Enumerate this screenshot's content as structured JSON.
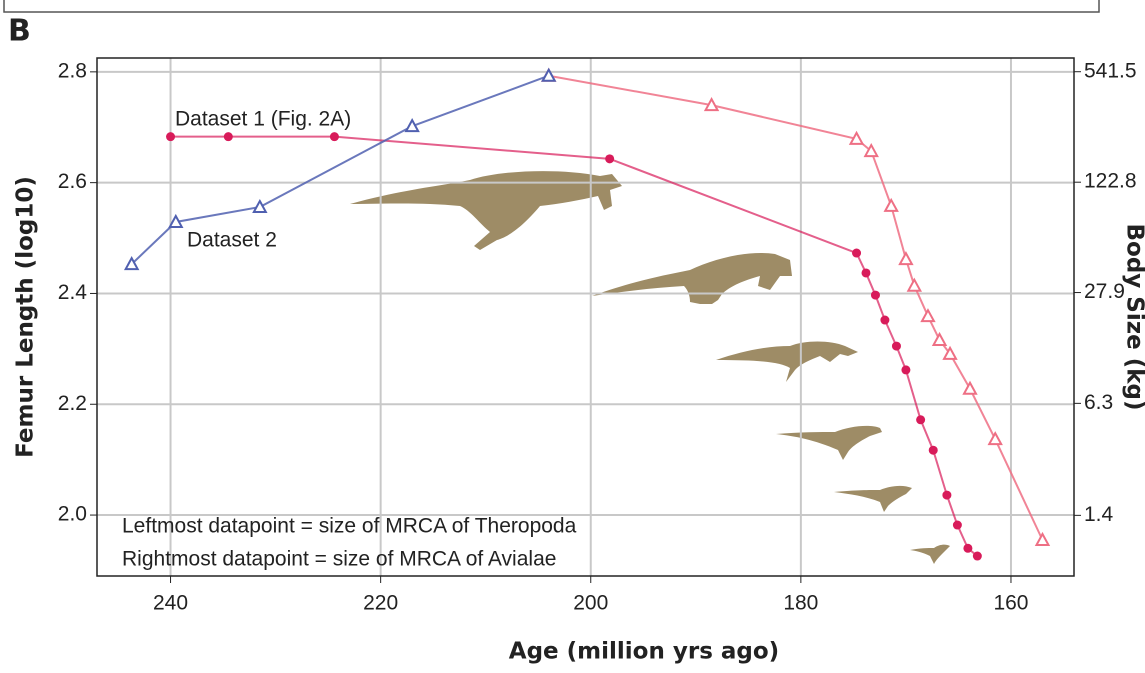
{
  "chart_data": {
    "type": "line",
    "panel_label": "B",
    "xlabel": "Age (million yrs ago)",
    "ylabel": "Femur Length (log10)",
    "y2label": "Body Size (kg)",
    "xlim": [
      247,
      154
    ],
    "ylim": [
      1.89,
      2.825
    ],
    "y2lim": [
      0.62,
      651
    ],
    "y2scale": "log",
    "xticks": [
      240,
      220,
      200,
      180,
      160
    ],
    "yticks": [
      {
        "value": 2,
        "label": "2.0"
      },
      2.2,
      2.4,
      2.6,
      2.8
    ],
    "y2ticks": [
      1.4,
      6.3,
      27.9,
      122.8,
      541.5
    ],
    "grid": true,
    "series": [
      {
        "name": "Dataset 1 (Fig. 2A)",
        "color": "#d81b5a",
        "marker": "circle",
        "x": [
          240,
          234.5,
          224.4,
          198.2,
          174.7,
          173.8,
          172.9,
          172.0,
          170.9,
          170.0,
          168.6,
          167.4,
          166.1,
          165.1,
          164.1,
          163.2
        ],
        "values": [
          2.683,
          2.683,
          2.683,
          2.643,
          2.473,
          2.437,
          2.397,
          2.352,
          2.305,
          2.262,
          2.172,
          2.117,
          2.036,
          1.982,
          1.94,
          1.926
        ]
      },
      {
        "color": "#ee6f84",
        "marker": "triangle",
        "x": [
          204.0,
          188.5,
          174.7,
          173.3,
          171.4,
          170.0,
          169.2,
          167.9,
          166.8,
          165.8,
          163.9,
          161.5,
          157.0
        ],
        "values": [
          2.793,
          2.74,
          2.679,
          2.657,
          2.558,
          2.462,
          2.414,
          2.359,
          2.316,
          2.291,
          2.228,
          2.137,
          1.955
        ]
      },
      {
        "name": "Dataset 2",
        "color": "#5060b0",
        "marker": "triangle",
        "x": [
          243.7,
          239.5,
          231.5,
          217.0,
          204.0
        ],
        "values": [
          2.453,
          2.529,
          2.556,
          2.702,
          2.793
        ]
      }
    ],
    "annotations": [
      "Leftmost datapoint = size of MRCA of Theropoda",
      "Rightmost datapoint = size of MRCA of Avialae"
    ]
  }
}
